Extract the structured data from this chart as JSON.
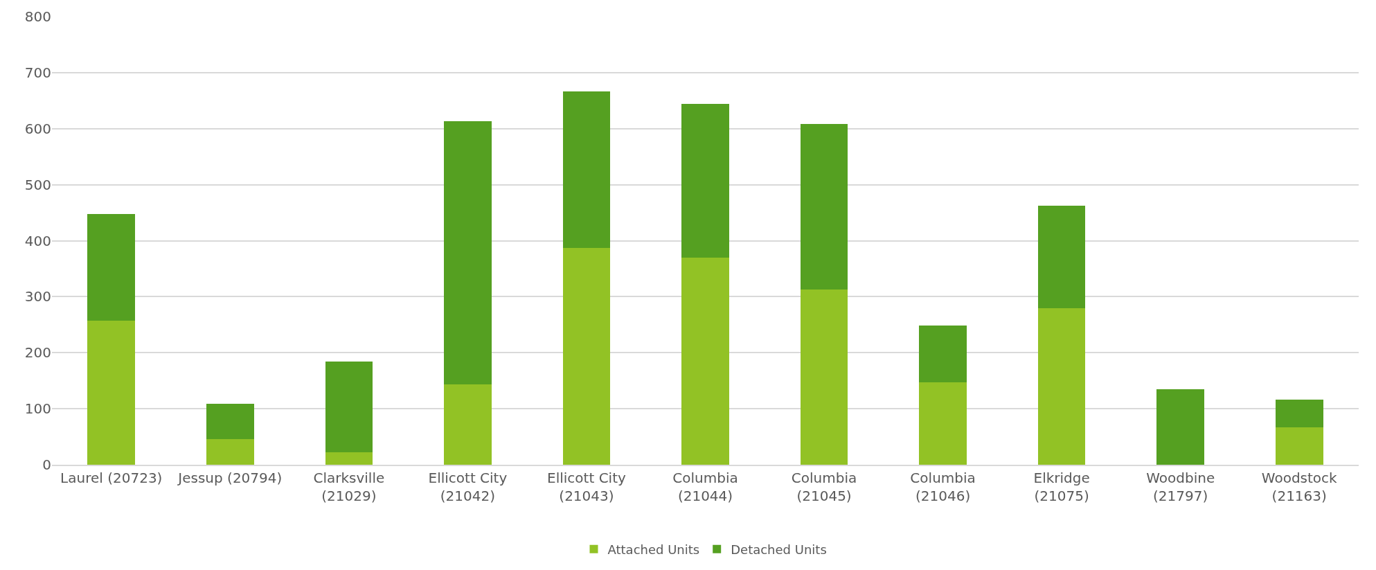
{
  "chart_data": {
    "type": "bar",
    "stacked": true,
    "categories": [
      "Laurel (20723)",
      "Jessup (20794)",
      "Clarksville (21029)",
      "Ellicott City (21042)",
      "Ellicott City (21043)",
      "Columbia (21044)",
      "Columbia (21045)",
      "Columbia (21046)",
      "Elkridge (21075)",
      "Woodbine (21797)",
      "Woodstock (21163)"
    ],
    "series": [
      {
        "name": "Attached Units",
        "color": "#92c225",
        "values": [
          257,
          46,
          22,
          144,
          387,
          370,
          313,
          147,
          280,
          0,
          67
        ]
      },
      {
        "name": "Detached Units",
        "color": "#55a021",
        "values": [
          191,
          63,
          162,
          469,
          280,
          274,
          295,
          102,
          182,
          135,
          49
        ]
      }
    ],
    "ylim": [
      0,
      800
    ],
    "yticks": [
      0,
      100,
      200,
      300,
      400,
      500,
      600,
      700,
      800
    ],
    "grid": "y",
    "legend": "bottom"
  }
}
